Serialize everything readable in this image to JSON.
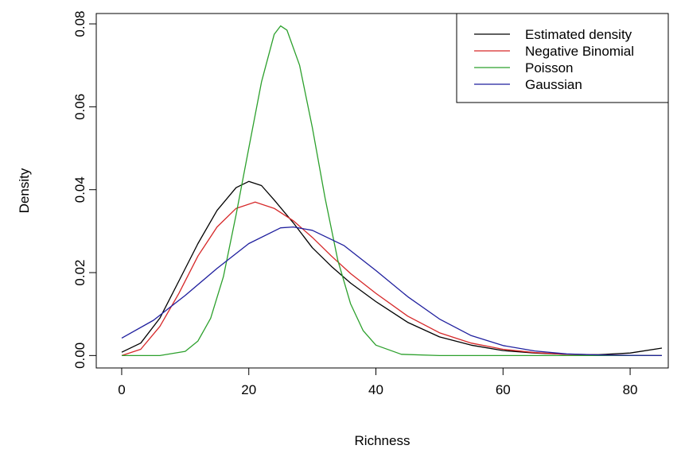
{
  "chart_data": {
    "type": "line",
    "xlabel": "Richness",
    "ylabel": "Density",
    "xlim": [
      -4,
      86
    ],
    "ylim": [
      -0.003,
      0.0825
    ],
    "x_ticks": [
      0,
      20,
      40,
      60,
      80
    ],
    "x_tick_labels": [
      "0",
      "20",
      "40",
      "60",
      "80"
    ],
    "y_ticks": [
      0.0,
      0.02,
      0.04,
      0.06,
      0.08
    ],
    "y_tick_labels": [
      "0.00",
      "0.02",
      "0.04",
      "0.06",
      "0.08"
    ],
    "grid": false,
    "legend_position": "top-right",
    "legend": [
      "Estimated density",
      "Negative Binomial",
      "Poisson",
      "Gaussian"
    ],
    "series": [
      {
        "name": "Estimated density",
        "color": "#000000",
        "x": [
          0,
          3,
          6,
          9,
          12,
          15,
          18,
          20,
          22,
          24,
          27,
          30,
          33,
          36,
          40,
          45,
          50,
          55,
          60,
          65,
          70,
          75,
          80,
          85
        ],
        "y": [
          0.0008,
          0.003,
          0.009,
          0.018,
          0.027,
          0.035,
          0.0405,
          0.042,
          0.041,
          0.0375,
          0.032,
          0.026,
          0.0215,
          0.0175,
          0.013,
          0.008,
          0.0045,
          0.0025,
          0.0012,
          0.0006,
          0.0003,
          0.0002,
          0.0006,
          0.0018
        ]
      },
      {
        "name": "Negative Binomial",
        "color": "#d62728",
        "x": [
          0,
          3,
          6,
          9,
          12,
          15,
          18,
          21,
          24,
          27,
          30,
          33,
          36,
          40,
          45,
          50,
          55,
          60,
          65,
          70,
          75,
          80,
          85
        ],
        "y": [
          0.0,
          0.0015,
          0.007,
          0.015,
          0.024,
          0.031,
          0.0355,
          0.037,
          0.0355,
          0.0325,
          0.0285,
          0.024,
          0.0198,
          0.015,
          0.0095,
          0.0055,
          0.003,
          0.0015,
          0.0007,
          0.0003,
          0.00012,
          4e-05,
          0.0
        ]
      },
      {
        "name": "Poisson",
        "color": "#2ca02c",
        "x": [
          0,
          6,
          10,
          12,
          14,
          16,
          18,
          20,
          22,
          24,
          25,
          26,
          28,
          30,
          32,
          34,
          36,
          38,
          40,
          44,
          50,
          60,
          85
        ],
        "y": [
          0.0,
          0.0,
          0.001,
          0.0035,
          0.009,
          0.019,
          0.034,
          0.05,
          0.066,
          0.0775,
          0.0795,
          0.0785,
          0.07,
          0.055,
          0.038,
          0.023,
          0.0125,
          0.006,
          0.0025,
          0.0003,
          0.0,
          0.0,
          0.0
        ]
      },
      {
        "name": "Gaussian",
        "color": "#1f1f9e",
        "x": [
          0,
          5,
          10,
          15,
          20,
          25,
          27,
          30,
          35,
          40,
          45,
          50,
          55,
          60,
          65,
          70,
          75,
          80,
          85
        ],
        "y": [
          0.0042,
          0.0085,
          0.0145,
          0.021,
          0.027,
          0.0308,
          0.031,
          0.0302,
          0.0265,
          0.0205,
          0.0142,
          0.0088,
          0.0048,
          0.0024,
          0.0011,
          0.0004,
          0.00015,
          5e-05,
          0.0
        ]
      }
    ]
  }
}
